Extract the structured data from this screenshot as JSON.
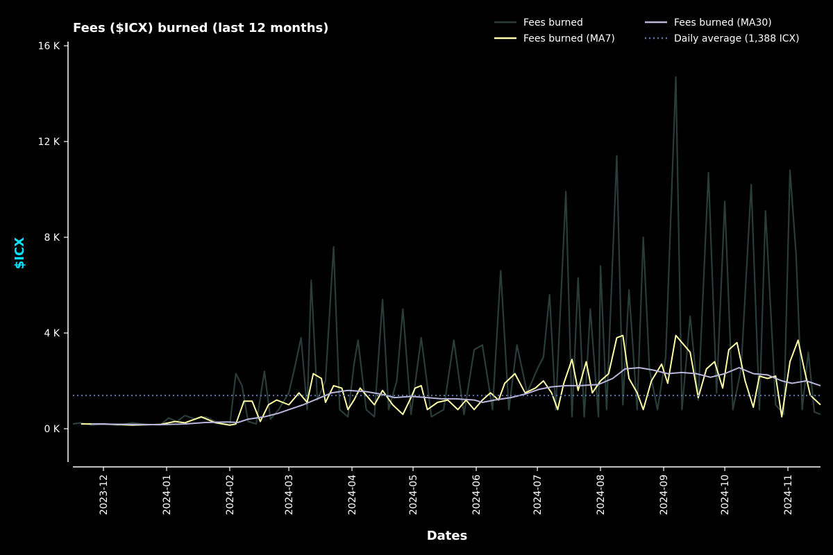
{
  "chart_data": {
    "type": "line",
    "title": "Fees ($ICX) burned (last 12 months)",
    "xlabel": "Dates",
    "ylabel": "$ICX",
    "ylim": [
      -1400,
      16100
    ],
    "yticks": [
      {
        "value": 0,
        "label": "0 K"
      },
      {
        "value": 4000,
        "label": "4 K"
      },
      {
        "value": 8000,
        "label": "8 K"
      },
      {
        "value": 12000,
        "label": "12 K"
      },
      {
        "value": 16000,
        "label": "16 K"
      }
    ],
    "xlim": [
      "2023-11-16",
      "2024-11-17"
    ],
    "xticks": [
      "2023-12-01",
      "2024-01-01",
      "2024-02-01",
      "2024-03-01",
      "2024-04-01",
      "2024-05-01",
      "2024-06-01",
      "2024-07-01",
      "2024-08-01",
      "2024-09-01",
      "2024-10-01",
      "2024-11-01"
    ],
    "xtick_labels": [
      "2023-12",
      "2024-01",
      "2024-02",
      "2024-03",
      "2024-04",
      "2024-05",
      "2024-06",
      "2024-07",
      "2024-08",
      "2024-09",
      "2024-10",
      "2024-11"
    ],
    "grid": false,
    "legend_position": "top-right",
    "series": [
      {
        "name": "Fees burned",
        "color": "#2a3d3a",
        "points": [
          [
            "2023-11-16",
            200
          ],
          [
            "2023-11-20",
            250
          ],
          [
            "2023-11-25",
            150
          ],
          [
            "2023-12-01",
            200
          ],
          [
            "2023-12-08",
            150
          ],
          [
            "2023-12-15",
            250
          ],
          [
            "2023-12-22",
            180
          ],
          [
            "2023-12-29",
            160
          ],
          [
            "2024-01-02",
            450
          ],
          [
            "2024-01-06",
            300
          ],
          [
            "2024-01-10",
            550
          ],
          [
            "2024-01-15",
            400
          ],
          [
            "2024-01-20",
            500
          ],
          [
            "2024-01-25",
            300
          ],
          [
            "2024-01-30",
            200
          ],
          [
            "2024-02-01",
            150
          ],
          [
            "2024-02-04",
            2300
          ],
          [
            "2024-02-07",
            1800
          ],
          [
            "2024-02-10",
            300
          ],
          [
            "2024-02-14",
            200
          ],
          [
            "2024-02-18",
            2400
          ],
          [
            "2024-02-21",
            400
          ],
          [
            "2024-02-25",
            800
          ],
          [
            "2024-03-01",
            1500
          ],
          [
            "2024-03-04",
            2600
          ],
          [
            "2024-03-07",
            3800
          ],
          [
            "2024-03-10",
            800
          ],
          [
            "2024-03-12",
            6200
          ],
          [
            "2024-03-15",
            1200
          ],
          [
            "2024-03-19",
            2000
          ],
          [
            "2024-03-23",
            7600
          ],
          [
            "2024-03-26",
            800
          ],
          [
            "2024-03-30",
            500
          ],
          [
            "2024-04-02",
            2700
          ],
          [
            "2024-04-04",
            3700
          ],
          [
            "2024-04-08",
            800
          ],
          [
            "2024-04-12",
            500
          ],
          [
            "2024-04-16",
            5400
          ],
          [
            "2024-04-19",
            800
          ],
          [
            "2024-04-23",
            2000
          ],
          [
            "2024-04-26",
            5000
          ],
          [
            "2024-04-30",
            600
          ],
          [
            "2024-05-05",
            3800
          ],
          [
            "2024-05-10",
            500
          ],
          [
            "2024-05-16",
            800
          ],
          [
            "2024-05-21",
            3700
          ],
          [
            "2024-05-26",
            600
          ],
          [
            "2024-05-31",
            3300
          ],
          [
            "2024-06-04",
            3500
          ],
          [
            "2024-06-09",
            800
          ],
          [
            "2024-06-13",
            6600
          ],
          [
            "2024-06-17",
            800
          ],
          [
            "2024-06-21",
            3500
          ],
          [
            "2024-06-26",
            1500
          ],
          [
            "2024-07-01",
            2500
          ],
          [
            "2024-07-04",
            3000
          ],
          [
            "2024-07-07",
            5600
          ],
          [
            "2024-07-10",
            800
          ],
          [
            "2024-07-15",
            9900
          ],
          [
            "2024-07-18",
            500
          ],
          [
            "2024-07-21",
            6300
          ],
          [
            "2024-07-24",
            500
          ],
          [
            "2024-07-27",
            5000
          ],
          [
            "2024-07-31",
            500
          ],
          [
            "2024-08-01",
            6800
          ],
          [
            "2024-08-04",
            800
          ],
          [
            "2024-08-07",
            7200
          ],
          [
            "2024-08-09",
            11400
          ],
          [
            "2024-08-12",
            1000
          ],
          [
            "2024-08-15",
            5800
          ],
          [
            "2024-08-19",
            800
          ],
          [
            "2024-08-22",
            8000
          ],
          [
            "2024-08-25",
            2500
          ],
          [
            "2024-08-29",
            800
          ],
          [
            "2024-09-02",
            3000
          ],
          [
            "2024-09-07",
            14700
          ],
          [
            "2024-09-10",
            800
          ],
          [
            "2024-09-14",
            4700
          ],
          [
            "2024-09-18",
            1200
          ],
          [
            "2024-09-23",
            10700
          ],
          [
            "2024-09-27",
            1500
          ],
          [
            "2024-10-01",
            9500
          ],
          [
            "2024-10-05",
            800
          ],
          [
            "2024-10-09",
            2500
          ],
          [
            "2024-10-14",
            10200
          ],
          [
            "2024-10-18",
            800
          ],
          [
            "2024-10-21",
            9100
          ],
          [
            "2024-10-26",
            1000
          ],
          [
            "2024-10-30",
            600
          ],
          [
            "2024-11-02",
            10800
          ],
          [
            "2024-11-05",
            7300
          ],
          [
            "2024-11-08",
            800
          ],
          [
            "2024-11-11",
            3200
          ],
          [
            "2024-11-14",
            700
          ],
          [
            "2024-11-17",
            600
          ]
        ]
      },
      {
        "name": "Fees burned (MA7)",
        "color": "#ffffa8",
        "points": [
          [
            "2023-11-20",
            200
          ],
          [
            "2023-12-01",
            200
          ],
          [
            "2023-12-15",
            150
          ],
          [
            "2023-12-29",
            180
          ],
          [
            "2024-01-05",
            300
          ],
          [
            "2024-01-10",
            250
          ],
          [
            "2024-01-18",
            500
          ],
          [
            "2024-01-25",
            250
          ],
          [
            "2024-02-01",
            150
          ],
          [
            "2024-02-04",
            200
          ],
          [
            "2024-02-08",
            1150
          ],
          [
            "2024-02-12",
            1150
          ],
          [
            "2024-02-16",
            300
          ],
          [
            "2024-02-20",
            1000
          ],
          [
            "2024-02-24",
            1200
          ],
          [
            "2024-03-01",
            1000
          ],
          [
            "2024-03-06",
            1500
          ],
          [
            "2024-03-10",
            1100
          ],
          [
            "2024-03-13",
            2300
          ],
          [
            "2024-03-17",
            2100
          ],
          [
            "2024-03-19",
            1100
          ],
          [
            "2024-03-23",
            1800
          ],
          [
            "2024-03-27",
            1700
          ],
          [
            "2024-03-30",
            800
          ],
          [
            "2024-04-02",
            1200
          ],
          [
            "2024-04-05",
            1700
          ],
          [
            "2024-04-08",
            1400
          ],
          [
            "2024-04-12",
            1000
          ],
          [
            "2024-04-16",
            1600
          ],
          [
            "2024-04-21",
            1000
          ],
          [
            "2024-04-26",
            600
          ],
          [
            "2024-04-30",
            1300
          ],
          [
            "2024-05-02",
            1700
          ],
          [
            "2024-05-05",
            1800
          ],
          [
            "2024-05-08",
            800
          ],
          [
            "2024-05-13",
            1100
          ],
          [
            "2024-05-18",
            1200
          ],
          [
            "2024-05-23",
            800
          ],
          [
            "2024-05-27",
            1200
          ],
          [
            "2024-05-31",
            800
          ],
          [
            "2024-06-04",
            1200
          ],
          [
            "2024-06-08",
            1500
          ],
          [
            "2024-06-12",
            1200
          ],
          [
            "2024-06-15",
            1900
          ],
          [
            "2024-06-20",
            2300
          ],
          [
            "2024-06-25",
            1500
          ],
          [
            "2024-06-30",
            1700
          ],
          [
            "2024-07-04",
            2000
          ],
          [
            "2024-07-08",
            1500
          ],
          [
            "2024-07-11",
            800
          ],
          [
            "2024-07-14",
            1900
          ],
          [
            "2024-07-18",
            2900
          ],
          [
            "2024-07-21",
            1600
          ],
          [
            "2024-07-25",
            2800
          ],
          [
            "2024-07-28",
            1500
          ],
          [
            "2024-08-01",
            2000
          ],
          [
            "2024-08-05",
            2300
          ],
          [
            "2024-08-09",
            3800
          ],
          [
            "2024-08-12",
            3900
          ],
          [
            "2024-08-15",
            2100
          ],
          [
            "2024-08-19",
            1500
          ],
          [
            "2024-08-22",
            800
          ],
          [
            "2024-08-26",
            2000
          ],
          [
            "2024-08-31",
            2700
          ],
          [
            "2024-09-03",
            1900
          ],
          [
            "2024-09-07",
            3900
          ],
          [
            "2024-09-10",
            3600
          ],
          [
            "2024-09-14",
            3200
          ],
          [
            "2024-09-18",
            1300
          ],
          [
            "2024-09-22",
            2500
          ],
          [
            "2024-09-26",
            2800
          ],
          [
            "2024-09-30",
            1700
          ],
          [
            "2024-10-03",
            3300
          ],
          [
            "2024-10-07",
            3600
          ],
          [
            "2024-10-11",
            2000
          ],
          [
            "2024-10-15",
            900
          ],
          [
            "2024-10-18",
            2200
          ],
          [
            "2024-10-22",
            2100
          ],
          [
            "2024-10-26",
            2200
          ],
          [
            "2024-10-29",
            500
          ],
          [
            "2024-11-02",
            2800
          ],
          [
            "2024-11-06",
            3700
          ],
          [
            "2024-11-09",
            2500
          ],
          [
            "2024-11-12",
            1400
          ],
          [
            "2024-11-17",
            1000
          ]
        ]
      },
      {
        "name": "Fees burned (MA30)",
        "color": "#b8b6dc",
        "points": [
          [
            "2023-11-25",
            200
          ],
          [
            "2023-12-15",
            180
          ],
          [
            "2023-12-29",
            170
          ],
          [
            "2024-01-10",
            200
          ],
          [
            "2024-01-20",
            260
          ],
          [
            "2024-01-31",
            280
          ],
          [
            "2024-02-05",
            260
          ],
          [
            "2024-02-10",
            400
          ],
          [
            "2024-02-18",
            500
          ],
          [
            "2024-02-25",
            650
          ],
          [
            "2024-03-01",
            800
          ],
          [
            "2024-03-08",
            1000
          ],
          [
            "2024-03-15",
            1250
          ],
          [
            "2024-03-22",
            1500
          ],
          [
            "2024-03-30",
            1600
          ],
          [
            "2024-04-08",
            1550
          ],
          [
            "2024-04-15",
            1450
          ],
          [
            "2024-04-22",
            1300
          ],
          [
            "2024-04-30",
            1350
          ],
          [
            "2024-05-08",
            1300
          ],
          [
            "2024-05-15",
            1250
          ],
          [
            "2024-05-22",
            1250
          ],
          [
            "2024-05-31",
            1200
          ],
          [
            "2024-06-04",
            1100
          ],
          [
            "2024-06-10",
            1200
          ],
          [
            "2024-06-18",
            1300
          ],
          [
            "2024-06-25",
            1450
          ],
          [
            "2024-07-02",
            1650
          ],
          [
            "2024-07-08",
            1750
          ],
          [
            "2024-07-15",
            1800
          ],
          [
            "2024-07-22",
            1800
          ],
          [
            "2024-07-31",
            1850
          ],
          [
            "2024-08-07",
            2100
          ],
          [
            "2024-08-13",
            2500
          ],
          [
            "2024-08-20",
            2550
          ],
          [
            "2024-08-27",
            2450
          ],
          [
            "2024-09-03",
            2300
          ],
          [
            "2024-09-10",
            2350
          ],
          [
            "2024-09-17",
            2300
          ],
          [
            "2024-09-24",
            2150
          ],
          [
            "2024-10-01",
            2300
          ],
          [
            "2024-10-08",
            2550
          ],
          [
            "2024-10-15",
            2300
          ],
          [
            "2024-10-22",
            2250
          ],
          [
            "2024-10-29",
            2000
          ],
          [
            "2024-11-03",
            1900
          ],
          [
            "2024-11-10",
            2000
          ],
          [
            "2024-11-17",
            1800
          ]
        ]
      },
      {
        "name": "Daily average (1,388 ICX)",
        "color": "#5b7ab0",
        "style": "dotted",
        "points": [
          [
            "2023-11-16",
            1388
          ],
          [
            "2024-11-17",
            1388
          ]
        ]
      }
    ]
  }
}
